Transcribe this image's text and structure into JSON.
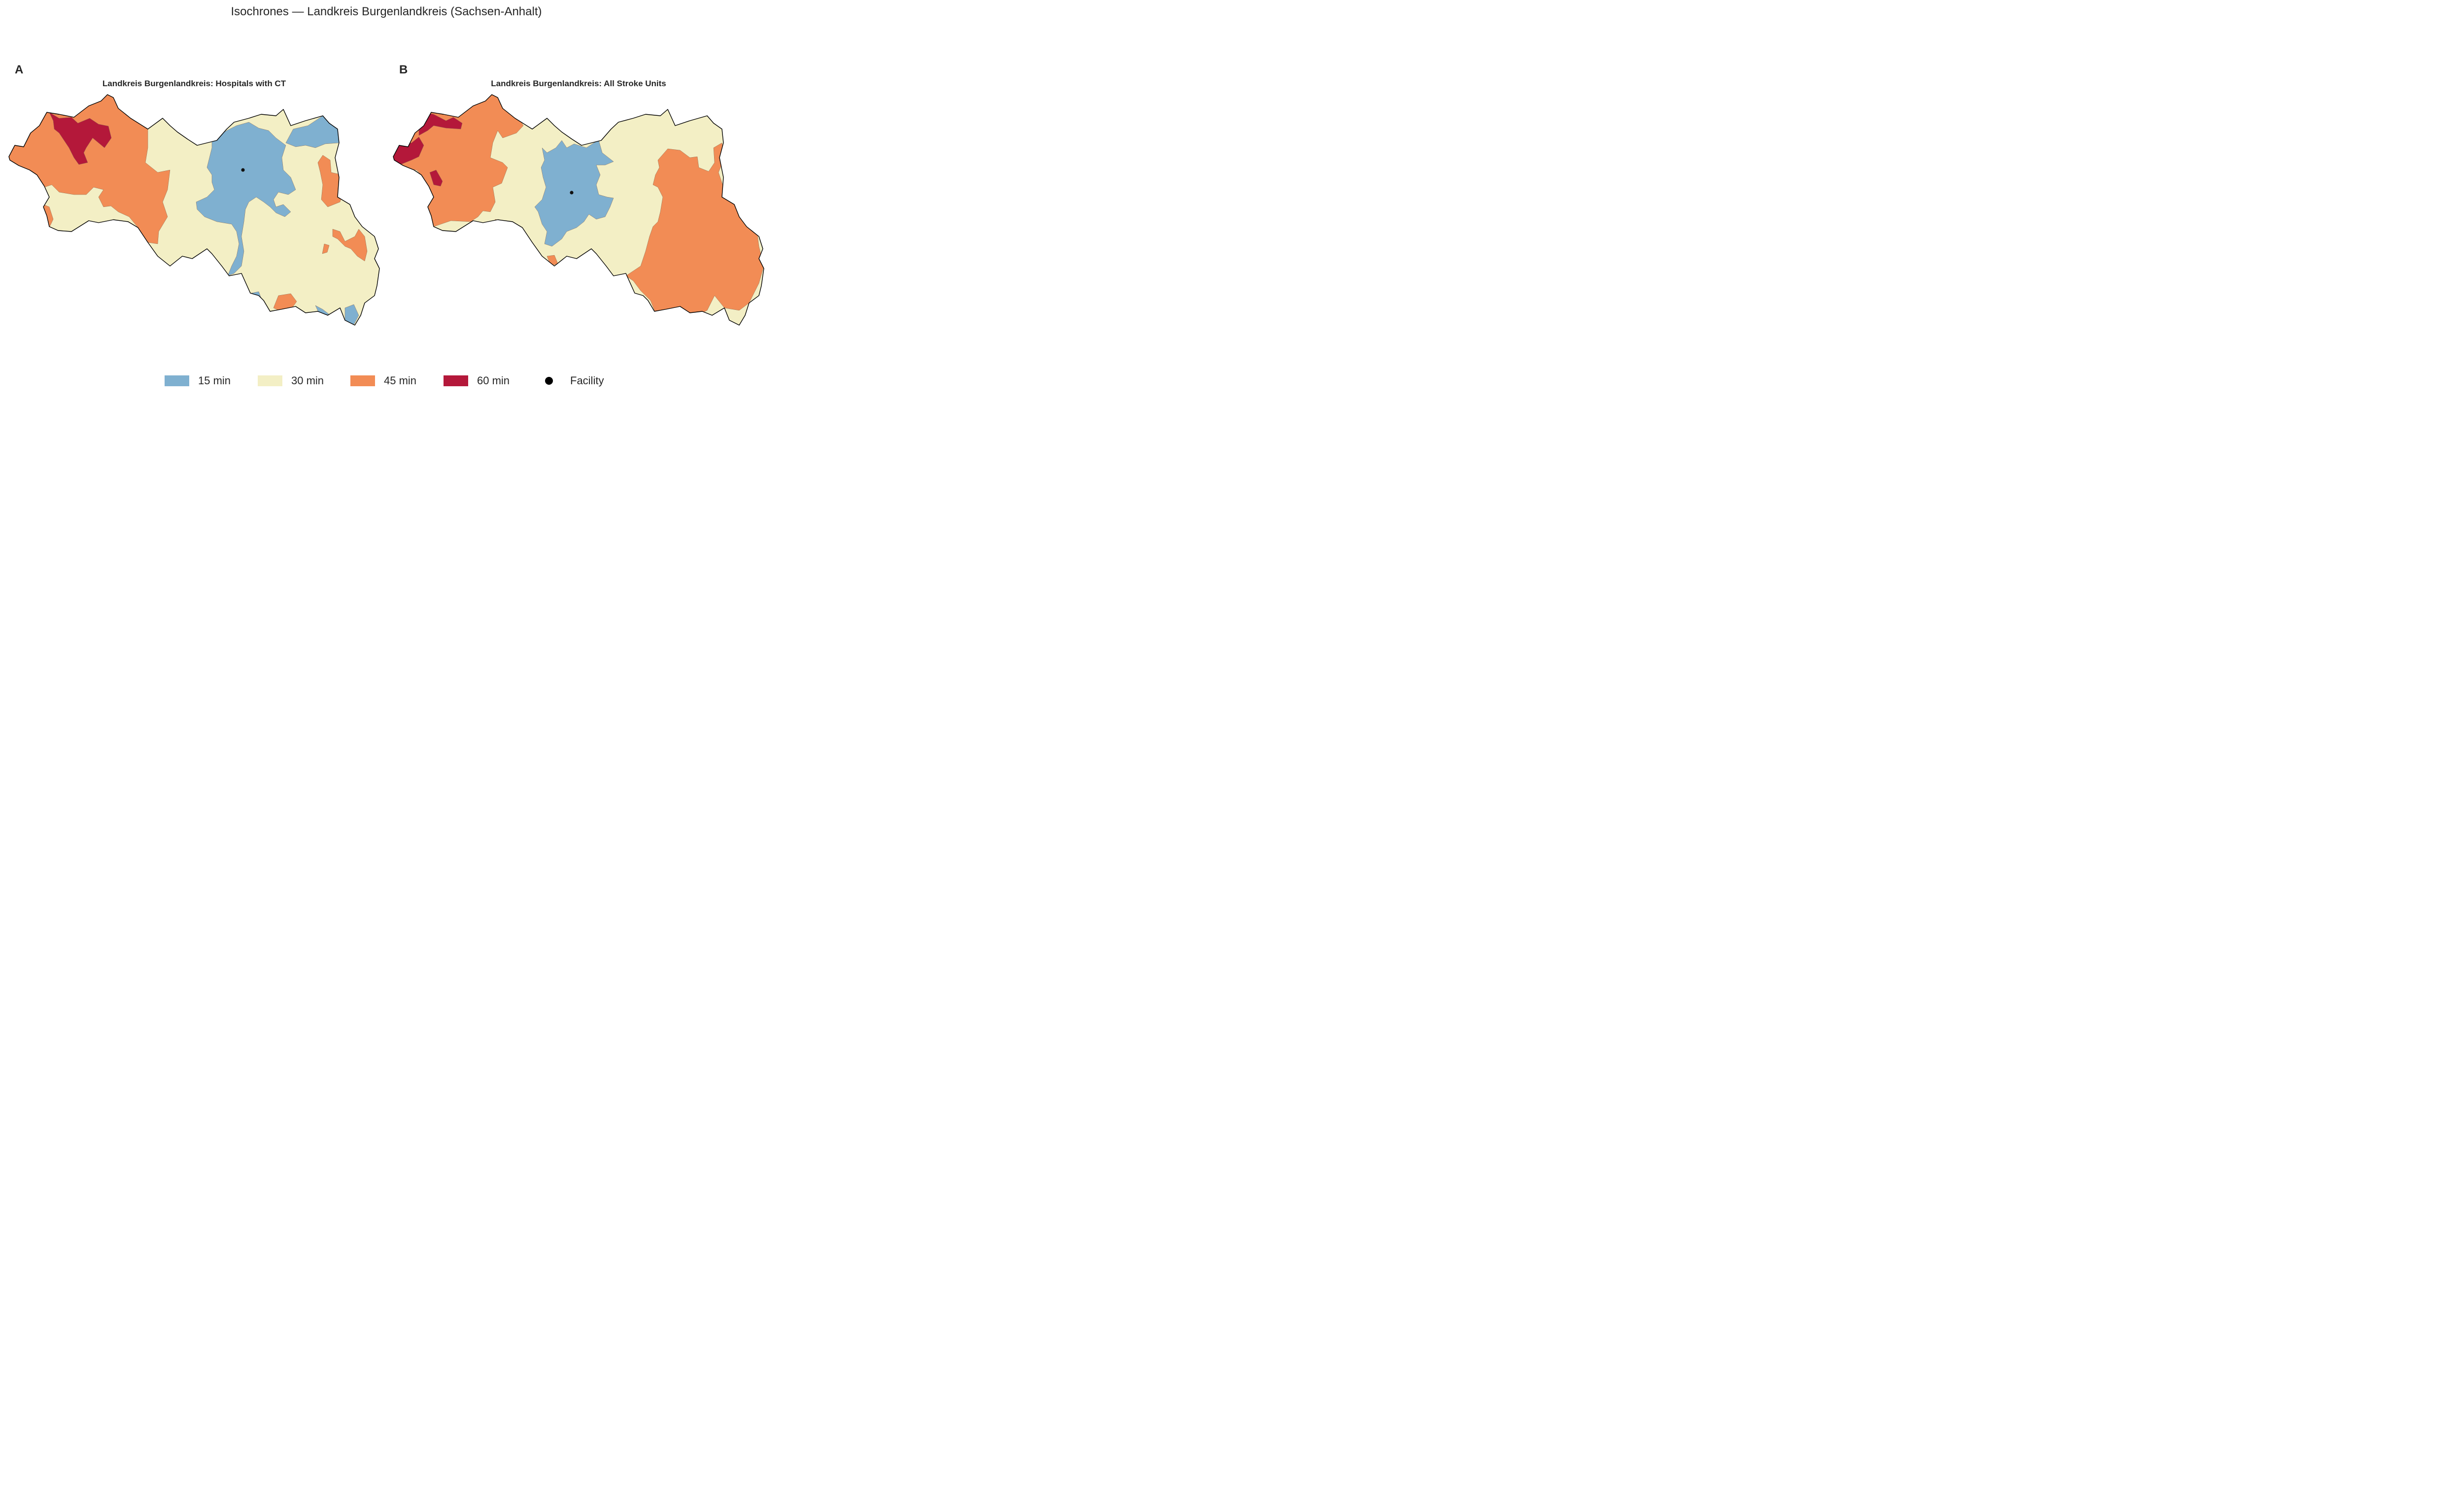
{
  "figure": {
    "title": "Isochrones — Landkreis Burgenlandkreis (Sachsen-Anhalt)"
  },
  "colors": {
    "min15": "#7fb0d0",
    "min30": "#f3efc5",
    "min45": "#f28c55",
    "min60": "#b4183a",
    "facility": "#111111",
    "boundary": "#000000"
  },
  "panels": [
    {
      "letter": "A",
      "title": "Landkreis Burgenlandkreis: Hospitals with CT"
    },
    {
      "letter": "B",
      "title": "Landkreis Burgenlandkreis: All Stroke Units"
    }
  ],
  "legend": {
    "items": [
      {
        "label": "15 min",
        "color": "#7fb0d0"
      },
      {
        "label": "30 min",
        "color": "#f3efc5"
      },
      {
        "label": "45 min",
        "color": "#f28c55"
      },
      {
        "label": "60 min",
        "color": "#b4183a"
      },
      {
        "label": "Facility",
        "marker": "dot"
      }
    ]
  }
}
